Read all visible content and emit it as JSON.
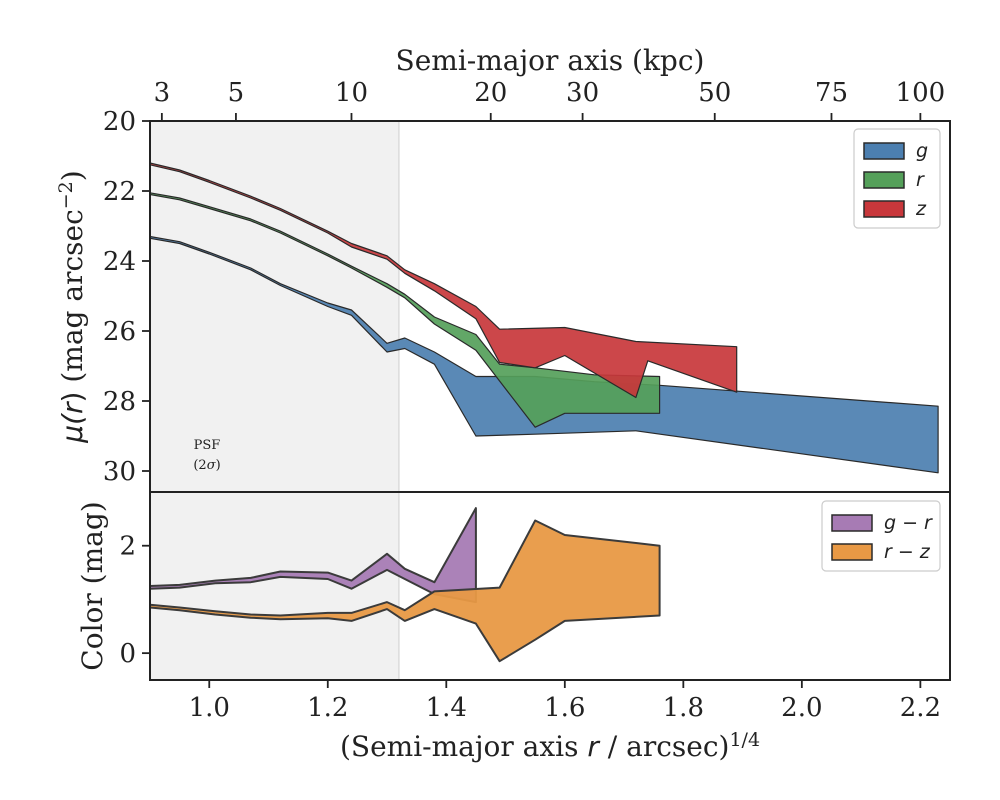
{
  "chart_data": [
    {
      "type": "area",
      "panel": "surface-brightness",
      "xlabel": "(Semi-major axis r / arcsec)^{1/4}",
      "ylabel": "μ(r) (mag arcsec^{-2})",
      "top_xlabel": "Semi-major axis (kpc)",
      "top_ticks": [
        {
          "label": "3",
          "x": 0.92
        },
        {
          "label": "5",
          "x": 1.045
        },
        {
          "label": "10",
          "x": 1.24
        },
        {
          "label": "20",
          "x": 1.475
        },
        {
          "label": "30",
          "x": 1.63
        },
        {
          "label": "50",
          "x": 1.853
        },
        {
          "label": "75",
          "x": 2.05
        },
        {
          "label": "100",
          "x": 2.2
        }
      ],
      "xlim": [
        0.9,
        2.25
      ],
      "ylim": [
        30.6,
        20.0
      ],
      "y_inverted": true,
      "yticks": [
        20,
        22,
        24,
        26,
        28,
        30
      ],
      "xticks": [
        1.0,
        1.2,
        1.4,
        1.6,
        1.8,
        2.0,
        2.2
      ],
      "xtick_labels": [
        "1.0",
        "1.2",
        "1.4",
        "1.6",
        "1.8",
        "2.0",
        "2.2"
      ],
      "psf_region": {
        "x_start": 0.9,
        "x_end": 1.32,
        "label_line1": "PSF",
        "label_line2": "(2σ)"
      },
      "legend": {
        "position": "upper-right"
      },
      "series": [
        {
          "name": "g",
          "color": "#4c7fb0",
          "upper": [
            [
              0.9,
              23.3
            ],
            [
              0.95,
              23.45
            ],
            [
              1.0,
              23.75
            ],
            [
              1.07,
              24.2
            ],
            [
              1.12,
              24.65
            ],
            [
              1.2,
              25.2
            ],
            [
              1.24,
              25.4
            ],
            [
              1.3,
              26.35
            ],
            [
              1.33,
              26.2
            ],
            [
              1.38,
              26.6
            ],
            [
              1.45,
              27.3
            ],
            [
              1.55,
              27.3
            ],
            [
              1.65,
              27.45
            ],
            [
              1.76,
              27.55
            ],
            [
              2.23,
              28.15
            ]
          ],
          "lower": [
            [
              0.9,
              23.35
            ],
            [
              0.95,
              23.5
            ],
            [
              1.0,
              23.8
            ],
            [
              1.07,
              24.25
            ],
            [
              1.12,
              24.7
            ],
            [
              1.2,
              25.3
            ],
            [
              1.24,
              25.55
            ],
            [
              1.3,
              26.6
            ],
            [
              1.33,
              26.5
            ],
            [
              1.38,
              26.95
            ],
            [
              1.45,
              29.0
            ],
            [
              1.55,
              28.95
            ],
            [
              1.72,
              28.85
            ],
            [
              2.23,
              30.05
            ]
          ]
        },
        {
          "name": "r",
          "color": "#55a05a",
          "upper": [
            [
              0.9,
              22.05
            ],
            [
              0.95,
              22.2
            ],
            [
              1.0,
              22.45
            ],
            [
              1.07,
              22.8
            ],
            [
              1.12,
              23.15
            ],
            [
              1.2,
              23.8
            ],
            [
              1.24,
              24.15
            ],
            [
              1.3,
              24.65
            ],
            [
              1.33,
              24.95
            ],
            [
              1.38,
              25.6
            ],
            [
              1.45,
              26.1
            ],
            [
              1.49,
              26.95
            ],
            [
              1.55,
              27.05
            ],
            [
              1.65,
              27.25
            ],
            [
              1.76,
              27.3
            ]
          ],
          "lower": [
            [
              0.9,
              22.1
            ],
            [
              0.95,
              22.25
            ],
            [
              1.0,
              22.5
            ],
            [
              1.07,
              22.85
            ],
            [
              1.12,
              23.2
            ],
            [
              1.2,
              23.85
            ],
            [
              1.24,
              24.2
            ],
            [
              1.3,
              24.75
            ],
            [
              1.33,
              25.05
            ],
            [
              1.38,
              25.8
            ],
            [
              1.45,
              26.55
            ],
            [
              1.55,
              28.75
            ],
            [
              1.6,
              28.35
            ],
            [
              1.76,
              28.35
            ]
          ]
        },
        {
          "name": "z",
          "color": "#c8373b",
          "upper": [
            [
              0.9,
              21.2
            ],
            [
              0.95,
              21.4
            ],
            [
              1.0,
              21.7
            ],
            [
              1.07,
              22.15
            ],
            [
              1.12,
              22.5
            ],
            [
              1.2,
              23.15
            ],
            [
              1.24,
              23.5
            ],
            [
              1.3,
              23.85
            ],
            [
              1.33,
              24.25
            ],
            [
              1.38,
              24.65
            ],
            [
              1.45,
              25.3
            ],
            [
              1.49,
              25.95
            ],
            [
              1.6,
              25.9
            ],
            [
              1.72,
              26.3
            ],
            [
              1.89,
              26.45
            ]
          ],
          "lower": [
            [
              0.9,
              21.25
            ],
            [
              0.95,
              21.45
            ],
            [
              1.0,
              21.75
            ],
            [
              1.07,
              22.2
            ],
            [
              1.12,
              22.55
            ],
            [
              1.2,
              23.2
            ],
            [
              1.24,
              23.6
            ],
            [
              1.3,
              23.95
            ],
            [
              1.33,
              24.35
            ],
            [
              1.38,
              24.85
            ],
            [
              1.45,
              25.65
            ],
            [
              1.49,
              26.9
            ],
            [
              1.55,
              27.05
            ],
            [
              1.6,
              26.7
            ],
            [
              1.72,
              27.9
            ],
            [
              1.74,
              26.85
            ],
            [
              1.89,
              27.75
            ]
          ]
        }
      ]
    },
    {
      "type": "area",
      "panel": "color",
      "xlabel": "(Semi-major axis r / arcsec)^{1/4}",
      "ylabel": "Color (mag)",
      "xlim": [
        0.9,
        2.25
      ],
      "ylim": [
        -0.5,
        3.0
      ],
      "yticks": [
        0,
        2
      ],
      "xticks": [
        1.0,
        1.2,
        1.4,
        1.6,
        1.8,
        2.0,
        2.2
      ],
      "xtick_labels": [
        "1.0",
        "1.2",
        "1.4",
        "1.6",
        "1.8",
        "2.0",
        "2.2"
      ],
      "legend": {
        "position": "upper-right"
      },
      "series": [
        {
          "name": "g − r",
          "color": "#a77bb4",
          "upper": [
            [
              0.9,
              1.25
            ],
            [
              0.95,
              1.27
            ],
            [
              1.01,
              1.35
            ],
            [
              1.07,
              1.4
            ],
            [
              1.12,
              1.52
            ],
            [
              1.2,
              1.5
            ],
            [
              1.24,
              1.35
            ],
            [
              1.3,
              1.85
            ],
            [
              1.33,
              1.57
            ],
            [
              1.38,
              1.32
            ],
            [
              1.45,
              2.7
            ]
          ],
          "lower": [
            [
              0.9,
              1.2
            ],
            [
              0.95,
              1.22
            ],
            [
              1.01,
              1.3
            ],
            [
              1.07,
              1.32
            ],
            [
              1.12,
              1.42
            ],
            [
              1.2,
              1.38
            ],
            [
              1.24,
              1.2
            ],
            [
              1.3,
              1.55
            ],
            [
              1.33,
              1.38
            ],
            [
              1.38,
              1.1
            ],
            [
              1.45,
              0.95
            ]
          ]
        },
        {
          "name": "r − z",
          "color": "#e89945",
          "upper": [
            [
              0.9,
              0.9
            ],
            [
              0.95,
              0.85
            ],
            [
              1.01,
              0.78
            ],
            [
              1.07,
              0.72
            ],
            [
              1.12,
              0.7
            ],
            [
              1.2,
              0.75
            ],
            [
              1.24,
              0.75
            ],
            [
              1.3,
              0.95
            ],
            [
              1.33,
              0.8
            ],
            [
              1.38,
              1.15
            ],
            [
              1.49,
              1.22
            ],
            [
              1.55,
              2.47
            ],
            [
              1.6,
              2.2
            ],
            [
              1.76,
              2.0
            ]
          ],
          "lower": [
            [
              0.9,
              0.85
            ],
            [
              0.95,
              0.8
            ],
            [
              1.01,
              0.72
            ],
            [
              1.07,
              0.66
            ],
            [
              1.12,
              0.63
            ],
            [
              1.2,
              0.65
            ],
            [
              1.24,
              0.6
            ],
            [
              1.3,
              0.82
            ],
            [
              1.33,
              0.6
            ],
            [
              1.38,
              0.82
            ],
            [
              1.45,
              0.55
            ],
            [
              1.49,
              -0.15
            ],
            [
              1.55,
              0.25
            ],
            [
              1.6,
              0.6
            ],
            [
              1.76,
              0.7
            ]
          ]
        }
      ]
    }
  ]
}
